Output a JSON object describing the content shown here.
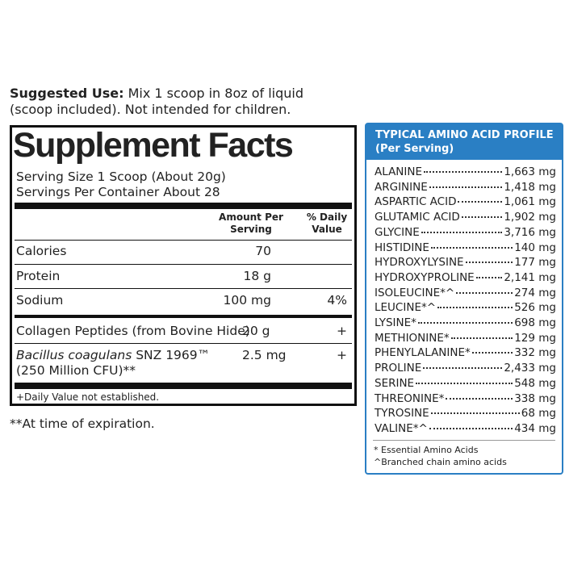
{
  "suggested_use": {
    "label": "Suggested Use:",
    "line1": "Mix 1 scoop in 8oz of liquid",
    "line2": "(scoop included). Not intended for children."
  },
  "supplement_facts": {
    "title": "Supplement Facts",
    "serving_size": "Serving Size 1 Scoop (About 20g)",
    "servings_per_container": "Servings Per Container About 28",
    "columns": {
      "amount": "Amount Per Serving",
      "daily_value": "% Daily Value"
    },
    "rows": [
      {
        "name": "Calories",
        "amount": "70"
      },
      {
        "name": "Protein",
        "amount": "18 g"
      },
      {
        "name": "Sodium",
        "amount": "100 mg",
        "daily_value": "4%"
      },
      {
        "name": "Collagen Peptides (from Bovine Hide)",
        "amount": "20 g",
        "daily_value": "+"
      },
      {
        "name_italic": "Bacillus coagulans",
        "name": "SNZ 1969™",
        "name_line2": "(250 Million CFU)**",
        "amount": "2.5 mg",
        "daily_value": "+"
      }
    ],
    "footnote": "+Daily Value not established."
  },
  "note": "**At time of expiration.",
  "amino_profile": {
    "title": "TYPICAL AMINO ACID PROFILE",
    "subtitle": "(Per Serving)",
    "rows": [
      {
        "name": "ALANINE",
        "amount": "1,663 mg"
      },
      {
        "name": "ARGININE",
        "amount": "1,418 mg"
      },
      {
        "name": "ASPARTIC ACID",
        "amount": "1,061 mg"
      },
      {
        "name": "GLUTAMIC ACID",
        "amount": "1,902 mg"
      },
      {
        "name": "GLYCINE",
        "amount": "3,716 mg"
      },
      {
        "name": "HISTIDINE",
        "amount": "140 mg"
      },
      {
        "name": "HYDROXYLYSINE",
        "amount": "177 mg"
      },
      {
        "name": "HYDROXYPROLINE",
        "amount": "2,141 mg"
      },
      {
        "name": "ISOLEUCINE*^",
        "amount": "274 mg"
      },
      {
        "name": "LEUCINE*^",
        "amount": "526 mg"
      },
      {
        "name": "LYSINE*",
        "amount": "698 mg"
      },
      {
        "name": "METHIONINE*",
        "amount": "129 mg"
      },
      {
        "name": "PHENYLALANINE*",
        "amount": "332 mg"
      },
      {
        "name": "PROLINE",
        "amount": "2,433 mg"
      },
      {
        "name": "SERINE",
        "amount": "548 mg"
      },
      {
        "name": "THREONINE*",
        "amount": "338 mg"
      },
      {
        "name": "TYROSINE",
        "amount": "68 mg"
      },
      {
        "name": "VALINE*^",
        "amount": "434 mg"
      }
    ],
    "footnotes": [
      "* Essential Amino Acids",
      "^Branched chain amino acids"
    ]
  }
}
